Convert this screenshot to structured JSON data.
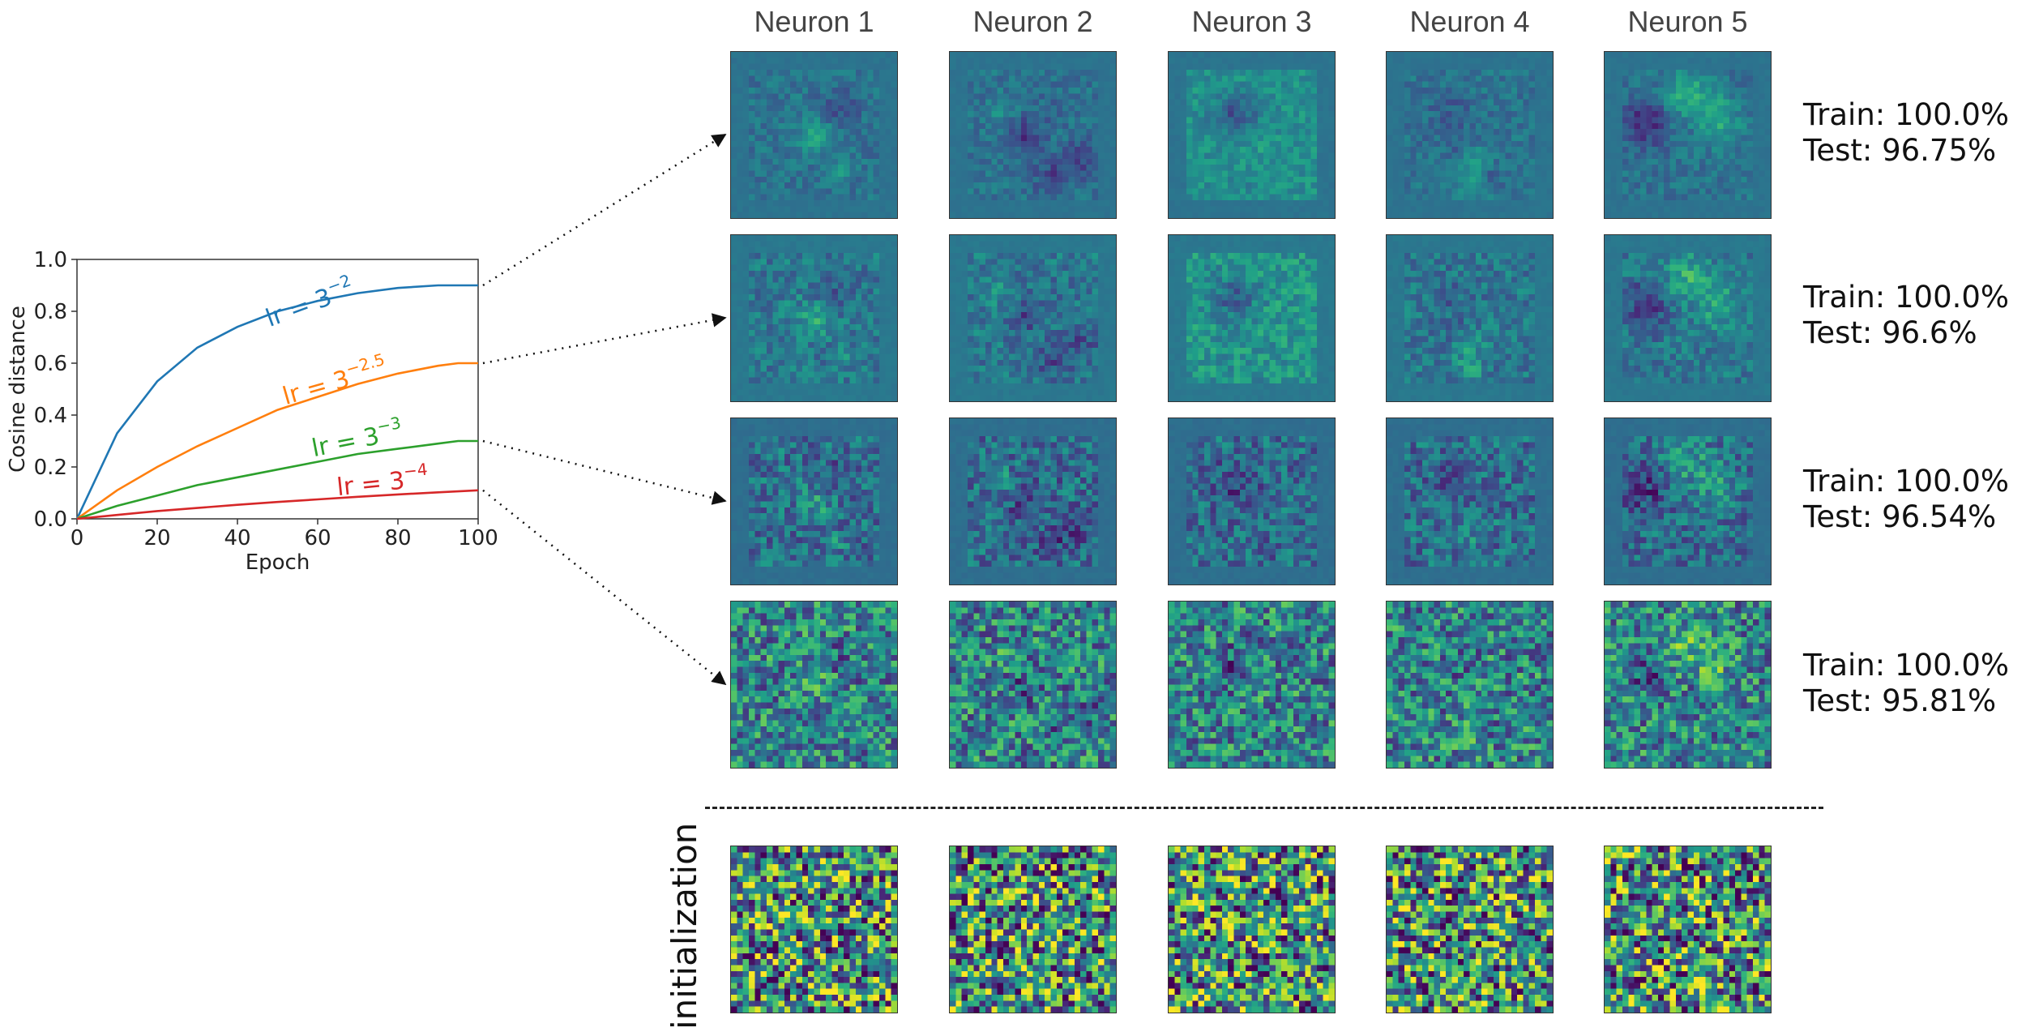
{
  "chart_data": {
    "type": "line",
    "xlabel": "Epoch",
    "ylabel": "Cosine distance",
    "xlim": [
      0,
      100
    ],
    "ylim": [
      0.0,
      1.0
    ],
    "xticks": [
      "0",
      "20",
      "40",
      "60",
      "80",
      "100"
    ],
    "yticks": [
      "0.0",
      "0.2",
      "0.4",
      "0.6",
      "0.8",
      "1.0"
    ],
    "series": [
      {
        "name": "lr = 3^-2",
        "label_base": "lr = 3",
        "label_exp": "−2",
        "color": "#1f77b4",
        "x": [
          0,
          10,
          20,
          30,
          40,
          50,
          60,
          70,
          80,
          90,
          95,
          100
        ],
        "y": [
          0.0,
          0.33,
          0.53,
          0.66,
          0.74,
          0.8,
          0.84,
          0.87,
          0.89,
          0.9,
          0.9,
          0.9
        ]
      },
      {
        "name": "lr = 3^-2.5",
        "label_base": "lr = 3",
        "label_exp": "−2.5",
        "color": "#ff7f0e",
        "x": [
          0,
          10,
          20,
          30,
          40,
          50,
          60,
          70,
          80,
          90,
          95,
          100
        ],
        "y": [
          0.0,
          0.11,
          0.2,
          0.28,
          0.35,
          0.42,
          0.47,
          0.52,
          0.56,
          0.59,
          0.6,
          0.6
        ]
      },
      {
        "name": "lr = 3^-3",
        "label_base": "lr = 3",
        "label_exp": "−3",
        "color": "#2ca02c",
        "x": [
          0,
          10,
          20,
          30,
          40,
          50,
          60,
          70,
          80,
          90,
          95,
          100
        ],
        "y": [
          0.0,
          0.05,
          0.09,
          0.13,
          0.16,
          0.19,
          0.22,
          0.25,
          0.27,
          0.29,
          0.3,
          0.3
        ]
      },
      {
        "name": "lr = 3^-4",
        "label_base": "lr = 3",
        "label_exp": "−4",
        "color": "#d62728",
        "x": [
          0,
          10,
          20,
          30,
          40,
          50,
          60,
          70,
          80,
          90,
          100
        ],
        "y": [
          0.0,
          0.015,
          0.03,
          0.042,
          0.054,
          0.065,
          0.075,
          0.085,
          0.094,
          0.102,
          0.11
        ]
      }
    ]
  },
  "neurons": [
    "Neuron 1",
    "Neuron 2",
    "Neuron 3",
    "Neuron 4",
    "Neuron 5"
  ],
  "results": [
    {
      "train": "Train: 100.0%",
      "test": "Test: 96.75%"
    },
    {
      "train": "Train: 100.0%",
      "test": "Test: 96.6%"
    },
    {
      "train": "Train: 100.0%",
      "test": "Test: 96.54%"
    },
    {
      "train": "Train: 100.0%",
      "test": "Test: 95.81%"
    }
  ],
  "initialization_label": "initialization",
  "heatmap": {
    "grid": 28,
    "colormap": "viridis"
  }
}
